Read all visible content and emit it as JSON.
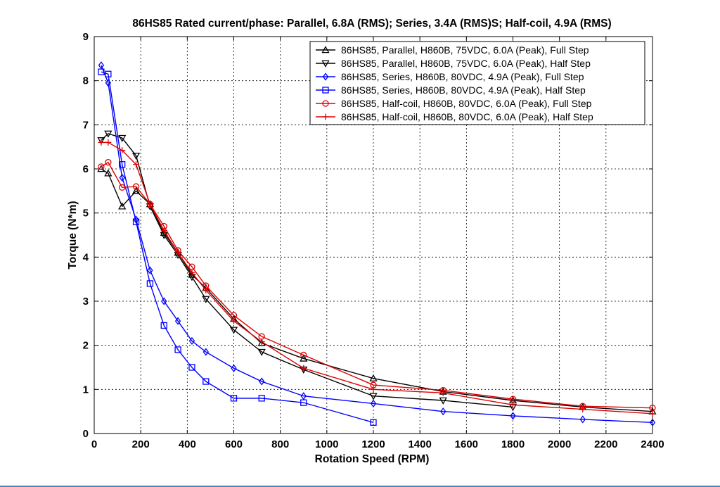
{
  "chart_data": {
    "type": "line",
    "title": "86HS85 Rated current/phase: Parallel, 6.8A (RMS); Series, 3.4A (RMS)S; Half-coil, 4.9A (RMS)",
    "xlabel": "Rotation Speed (RPM)",
    "ylabel": "Torque (N*m)",
    "xlim": [
      0,
      2400
    ],
    "ylim": [
      0,
      9
    ],
    "xticks": [
      "0",
      "200",
      "400",
      "600",
      "800",
      "1000",
      "1200",
      "1400",
      "1600",
      "1800",
      "2000",
      "2200",
      "2400"
    ],
    "yticks": [
      "0",
      "1",
      "2",
      "3",
      "4",
      "5",
      "6",
      "7",
      "8",
      "9"
    ],
    "grid": true,
    "legend_position": "top-right",
    "series": [
      {
        "name": "86HS85, Parallel, H860B, 75VDC, 6.0A (Peak), Full Step",
        "color": "#000000",
        "marker": "triangle-up",
        "x": [
          30,
          60,
          120,
          180,
          240,
          300,
          360,
          420,
          480,
          600,
          720,
          900,
          1200,
          1500,
          1800,
          2100,
          2400
        ],
        "y": [
          6.0,
          5.9,
          5.15,
          5.5,
          5.2,
          4.55,
          4.1,
          3.6,
          3.3,
          2.6,
          2.05,
          1.7,
          1.25,
          0.95,
          0.75,
          0.6,
          0.5
        ]
      },
      {
        "name": "86HS85, Parallel, H860B, 75VDC, 6.0A (Peak), Half Step",
        "color": "#000000",
        "marker": "triangle-down",
        "x": [
          30,
          60,
          120,
          180,
          240,
          300,
          360,
          420,
          480,
          600,
          720,
          900,
          1200,
          1500,
          1800
        ],
        "y": [
          6.65,
          6.8,
          6.7,
          6.3,
          5.15,
          4.5,
          4.05,
          3.55,
          3.05,
          2.35,
          1.85,
          1.45,
          0.85,
          0.75,
          0.6
        ]
      },
      {
        "name": "86HS85, Series, H860B, 80VDC, 4.9A (Peak), Full Step",
        "color": "#0000ff",
        "marker": "diamond",
        "x": [
          30,
          60,
          120,
          180,
          240,
          300,
          360,
          420,
          480,
          600,
          720,
          900,
          1200,
          1500,
          1800,
          2100,
          2400
        ],
        "y": [
          8.35,
          7.95,
          5.8,
          4.85,
          3.7,
          3.0,
          2.55,
          2.1,
          1.85,
          1.48,
          1.18,
          0.85,
          0.68,
          0.5,
          0.4,
          0.32,
          0.25
        ]
      },
      {
        "name": "86HS85, Series, H860B, 80VDC, 4.9A (Peak), Half Step",
        "color": "#0000ff",
        "marker": "square",
        "x": [
          30,
          60,
          120,
          180,
          240,
          300,
          360,
          420,
          480,
          600,
          720,
          900,
          1200
        ],
        "y": [
          8.2,
          8.15,
          6.1,
          4.8,
          3.4,
          2.45,
          1.9,
          1.5,
          1.18,
          0.8,
          0.8,
          0.7,
          0.25
        ]
      },
      {
        "name": "86HS85, Half-coil, H860B, 80VDC, 6.0A (Peak), Full Step",
        "color": "#dd0000",
        "marker": "circle",
        "x": [
          30,
          60,
          120,
          180,
          240,
          300,
          360,
          420,
          480,
          600,
          720,
          900,
          1200,
          1500,
          1800,
          2100,
          2400
        ],
        "y": [
          6.05,
          6.15,
          5.58,
          5.6,
          5.2,
          4.7,
          4.15,
          3.78,
          3.35,
          2.68,
          2.2,
          1.78,
          1.1,
          0.98,
          0.78,
          0.62,
          0.58
        ]
      },
      {
        "name": "86HS85, Half-coil, H860B, 80VDC, 6.0A (Peak), Half Step",
        "color": "#dd0000",
        "marker": "plus",
        "x": [
          30,
          60,
          120,
          180,
          240,
          300,
          360,
          420,
          480,
          600,
          720,
          900,
          1200,
          1500,
          1800,
          2100,
          2400
        ],
        "y": [
          6.6,
          6.6,
          6.42,
          6.1,
          5.2,
          4.6,
          4.1,
          3.65,
          3.25,
          2.55,
          2.08,
          1.48,
          1.0,
          0.92,
          0.65,
          0.55,
          0.45
        ]
      }
    ]
  }
}
